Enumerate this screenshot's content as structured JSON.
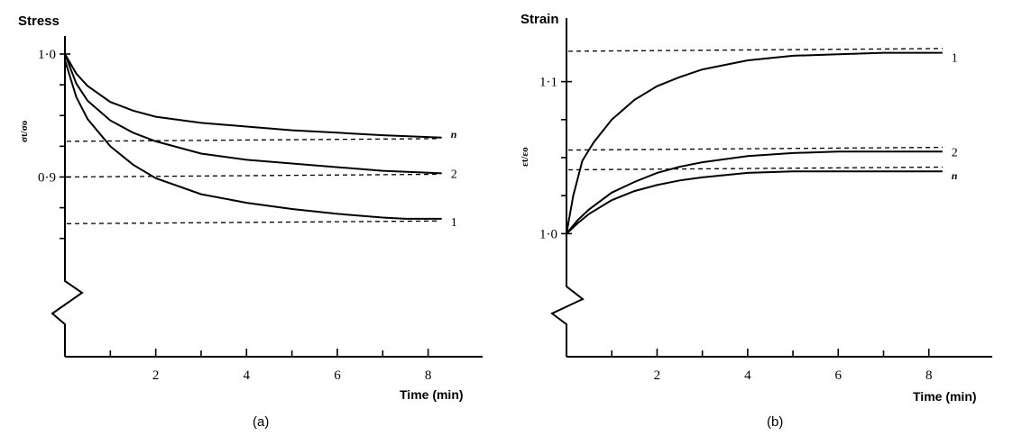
{
  "chart_data": [
    {
      "type": "line",
      "panel": "a",
      "title": "Stress",
      "ylabel": "σt/σo",
      "xlabel": "Time (min)",
      "caption": "(a)",
      "xlim": [
        0,
        9.2
      ],
      "ylim": [
        0.83,
        1.0
      ],
      "x_ticks": [
        2,
        4,
        6,
        8
      ],
      "x_minor_ticks": [
        1,
        3,
        5,
        7
      ],
      "y_ticks": [
        {
          "value": 1.0,
          "label": "1·0"
        },
        {
          "value": 0.9,
          "label": "0·9"
        }
      ],
      "y_minor_ticks": [
        0.975,
        0.95,
        0.925,
        0.875,
        0.85
      ],
      "axis_break": true,
      "series": [
        {
          "name": "n",
          "x": [
            0,
            0.25,
            0.5,
            1,
            1.5,
            2,
            3,
            4,
            5,
            6,
            7,
            8.3
          ],
          "y": [
            1.0,
            0.984,
            0.974,
            0.961,
            0.954,
            0.949,
            0.944,
            0.941,
            0.938,
            0.936,
            0.934,
            0.932
          ],
          "asymptote": 0.929
        },
        {
          "name": "2",
          "x": [
            0,
            0.25,
            0.5,
            1,
            1.5,
            2,
            3,
            4,
            5,
            6,
            7,
            8.3
          ],
          "y": [
            1.0,
            0.976,
            0.962,
            0.946,
            0.936,
            0.929,
            0.919,
            0.914,
            0.911,
            0.908,
            0.905,
            0.903
          ],
          "asymptote": 0.9
        },
        {
          "name": "1",
          "x": [
            0,
            0.25,
            0.5,
            1,
            1.5,
            2,
            3,
            4,
            5,
            6,
            7,
            7.5,
            8.3
          ],
          "y": [
            0.995,
            0.965,
            0.947,
            0.925,
            0.91,
            0.899,
            0.886,
            0.879,
            0.874,
            0.87,
            0.867,
            0.866,
            0.866
          ],
          "asymptote": 0.862
        }
      ]
    },
    {
      "type": "line",
      "panel": "b",
      "title": "Strain",
      "ylabel": "εt/εo",
      "xlabel": "Time (min)",
      "caption": "(b)",
      "xlim": [
        0,
        9.4
      ],
      "ylim": [
        0.97,
        1.13
      ],
      "x_ticks": [
        2,
        4,
        6,
        8
      ],
      "x_minor_ticks": [
        1,
        3,
        5,
        7
      ],
      "y_ticks": [
        {
          "value": 1.1,
          "label": "1·1"
        },
        {
          "value": 1.0,
          "label": "1·0"
        }
      ],
      "y_minor_ticks": [
        1.075,
        1.05,
        1.025
      ],
      "axis_break": true,
      "series": [
        {
          "name": "1",
          "x": [
            0,
            0.15,
            0.35,
            0.6,
            1,
            1.5,
            2,
            2.5,
            3,
            4,
            5,
            6,
            7,
            8.3
          ],
          "y": [
            1.0,
            1.025,
            1.048,
            1.06,
            1.075,
            1.088,
            1.097,
            1.103,
            1.108,
            1.114,
            1.117,
            1.118,
            1.119,
            1.119
          ],
          "asymptote": 1.12
        },
        {
          "name": "2",
          "x": [
            0,
            0.25,
            0.5,
            1,
            1.5,
            2,
            2.5,
            3,
            4,
            5,
            6,
            7,
            8.3
          ],
          "y": [
            1.0,
            1.009,
            1.016,
            1.027,
            1.034,
            1.04,
            1.044,
            1.047,
            1.051,
            1.053,
            1.054,
            1.054,
            1.054
          ],
          "asymptote": 1.055
        },
        {
          "name": "n",
          "x": [
            0,
            0.25,
            0.5,
            1,
            1.5,
            2,
            2.5,
            3,
            4,
            5,
            6,
            7,
            8.3
          ],
          "y": [
            1.0,
            1.007,
            1.013,
            1.022,
            1.028,
            1.032,
            1.035,
            1.037,
            1.04,
            1.041,
            1.041,
            1.041,
            1.041
          ],
          "asymptote": 1.042
        }
      ]
    }
  ]
}
